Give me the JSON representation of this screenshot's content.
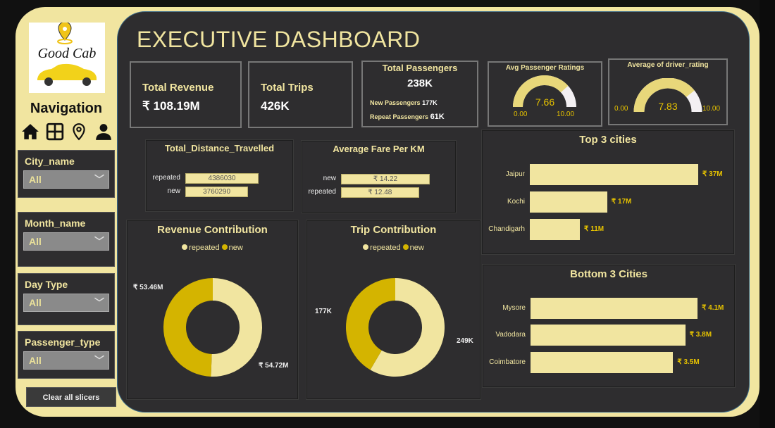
{
  "colors": {
    "accent": "#f1e5a0",
    "dark_yellow": "#d4b400",
    "panel": "#2e2d2f",
    "gauge_rest": "#f3f0f3"
  },
  "sidebar": {
    "logo_text": "Good Cab",
    "nav_title": "Navigation",
    "nav_icons": [
      "home-icon",
      "grid-icon",
      "location-pin-icon",
      "user-icon"
    ],
    "slicers": [
      {
        "label": "City_name",
        "value": "All"
      },
      {
        "label": "Month_name",
        "value": "All"
      },
      {
        "label": "Day Type",
        "value": "All"
      },
      {
        "label": "Passenger_type",
        "value": "All"
      }
    ],
    "clear_label": "Clear all slicers"
  },
  "header": {
    "title": "EXECUTIVE DASHBOARD"
  },
  "kpis": {
    "revenue": {
      "label": "Total Revenue",
      "value": "₹ 108.19M"
    },
    "trips": {
      "label": "Total Trips",
      "value": "426K"
    },
    "passengers": {
      "label": "Total Passengers",
      "value": "238K",
      "new_label": "New Passengers",
      "new_value": "177K",
      "repeat_label": "Repeat Passengers",
      "repeat_value": "61K"
    }
  },
  "gauges": [
    {
      "title": "Avg Passenger Ratings",
      "value": 7.66,
      "value_label": "7.66",
      "min": "0.00",
      "max": "10.00"
    },
    {
      "title": "Average of driver_rating",
      "value": 7.83,
      "value_label": "7.83",
      "min": "0.00",
      "max": "10.00"
    }
  ],
  "chart_data": [
    {
      "type": "bar",
      "title": "Total_Distance_Travelled",
      "categories": [
        "repeated",
        "new"
      ],
      "values": [
        4386030,
        3760290
      ],
      "labels": [
        "4386030",
        "3760290"
      ]
    },
    {
      "type": "bar",
      "title": "Average Fare Per KM",
      "categories": [
        "new",
        "repeated"
      ],
      "values": [
        14.22,
        12.48
      ],
      "labels": [
        "₹ 14.22",
        "₹ 12.48"
      ]
    },
    {
      "type": "bar",
      "title": "Top 3 cities",
      "categories": [
        "Jaipur",
        "Kochi",
        "Chandigarh"
      ],
      "values": [
        37,
        17,
        11
      ],
      "labels": [
        "₹ 37M",
        "₹ 17M",
        "₹ 11M"
      ],
      "unit": "₹M"
    },
    {
      "type": "bar",
      "title": "Bottom 3 Cities",
      "categories": [
        "Mysore",
        "Vadodara",
        "Coimbatore"
      ],
      "values": [
        4.1,
        3.8,
        3.5
      ],
      "labels": [
        "₹ 4.1M",
        "₹ 3.8M",
        "₹ 3.5M"
      ],
      "unit": "₹M"
    },
    {
      "type": "pie",
      "title": "Revenue Contribution",
      "legend": [
        "repeated",
        "new"
      ],
      "legend_placement": "top",
      "values": [
        54.72,
        53.46
      ],
      "labels": [
        "₹ 54.72M",
        "₹ 53.46M"
      ]
    },
    {
      "type": "pie",
      "title": "Trip Contribution",
      "legend": [
        "repeated",
        "new"
      ],
      "legend_placement": "top",
      "values": [
        249,
        177
      ],
      "labels": [
        "249K",
        "177K"
      ]
    }
  ]
}
